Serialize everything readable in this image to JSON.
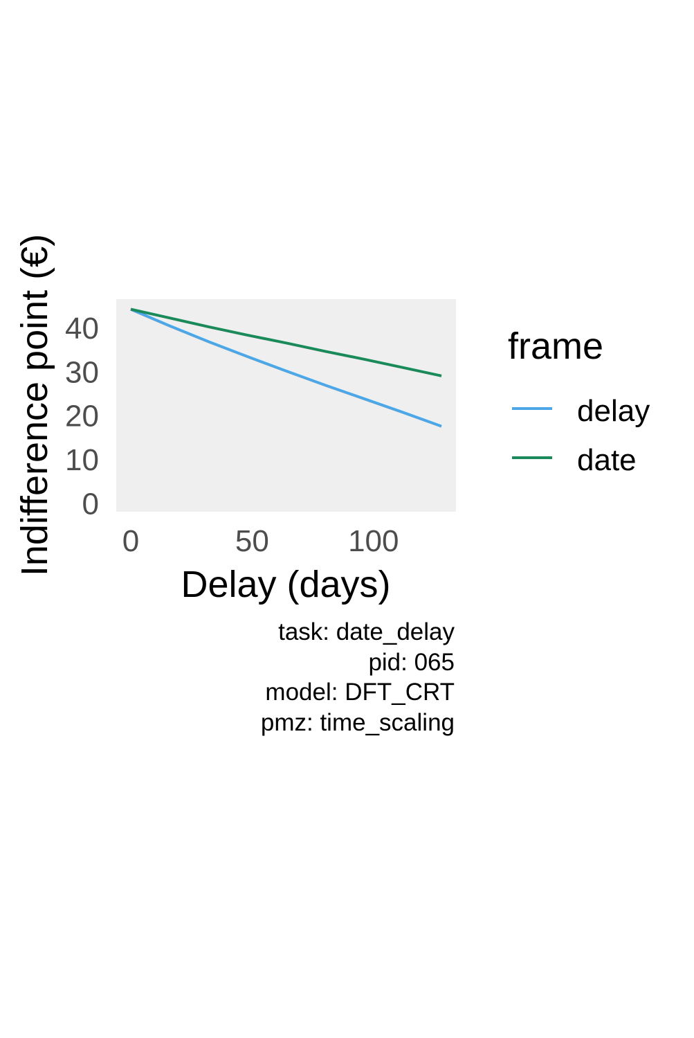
{
  "chart_data": {
    "type": "line",
    "xlabel": "Delay (days)",
    "ylabel": "Indifference point (€)",
    "xlim": [
      -6,
      134
    ],
    "ylim": [
      -2,
      46.5
    ],
    "x_ticks": [
      0,
      50,
      100
    ],
    "y_ticks": [
      0,
      10,
      20,
      30,
      40
    ],
    "x": [
      0,
      16,
      32,
      48,
      64,
      80,
      96,
      112,
      128
    ],
    "series": [
      {
        "name": "delay",
        "color": "#4da6e6",
        "values": [
          44.2,
          40.4,
          36.8,
          33.4,
          30.1,
          26.9,
          23.8,
          20.7,
          17.5
        ]
      },
      {
        "name": "date",
        "color": "#1a8a5a",
        "values": [
          44.2,
          42.2,
          40.2,
          38.3,
          36.5,
          34.6,
          32.8,
          30.9,
          29.0
        ]
      }
    ],
    "legend": {
      "title": "frame",
      "position": "right"
    },
    "grid": false,
    "panel_background": "#efefef"
  },
  "caption": {
    "lines": [
      "task: date_delay",
      "pid: 065",
      "model: DFT_CRT",
      "pmz: time_scaling"
    ]
  }
}
